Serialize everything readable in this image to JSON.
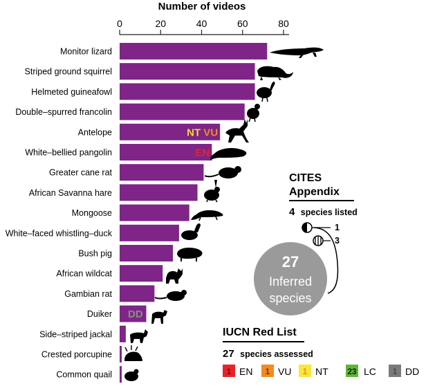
{
  "chart_data": {
    "type": "bar",
    "orientation": "horizontal",
    "title": "Number of videos",
    "xlim": [
      0,
      80
    ],
    "ticks": [
      0,
      20,
      40,
      60,
      80
    ],
    "bar_color": "#7e2587",
    "categories": [
      "Monitor lizard",
      "Striped ground squirrel",
      "Helmeted guineafowl",
      "Double–spurred francolin",
      "Antelope",
      "White–bellied pangolin",
      "Greater cane rat",
      "African Savanna hare",
      "Mongoose",
      "White–faced whistling–duck",
      "Bush pig",
      "African wildcat",
      "Gambian rat",
      "Duiker",
      "Side–striped jackal",
      "Crested porcupine",
      "Common quail"
    ],
    "values": [
      72,
      66,
      66,
      61,
      49,
      45,
      41,
      38,
      34,
      29,
      26,
      21,
      17,
      13,
      3,
      1,
      1
    ],
    "badges": [
      {
        "category_index": 4,
        "parts": [
          {
            "text": "NT",
            "color": "#f7d63b"
          },
          {
            "text": " VU",
            "color": "#f18b25"
          }
        ]
      },
      {
        "category_index": 5,
        "parts": [
          {
            "text": "EN",
            "color": "#e8232a"
          }
        ]
      },
      {
        "category_index": 13,
        "parts": [
          {
            "text": "DD",
            "color": "#8c8c8c"
          }
        ]
      }
    ]
  },
  "cites": {
    "title_line1": "CITES",
    "title_line2": "Appendix",
    "count": "4",
    "count_label": "species listed",
    "appendix_1": "1",
    "appendix_3": "3",
    "inferred_count": "27",
    "inferred_line1": "Inferred",
    "inferred_line2": "species"
  },
  "iucn": {
    "title": "IUCN Red List",
    "count": "27",
    "count_label": "species assessed",
    "legend": [
      {
        "count": "1",
        "label": "EN",
        "color": "#e8232a"
      },
      {
        "count": "1",
        "label": "VU",
        "color": "#f18b25"
      },
      {
        "count": "1",
        "label": "NT",
        "color": "#f7e73b"
      },
      {
        "count": "23",
        "label": "LC",
        "color": "#5cb837"
      },
      {
        "count": "1",
        "label": "DD",
        "color": "#7a7a7a"
      }
    ]
  }
}
